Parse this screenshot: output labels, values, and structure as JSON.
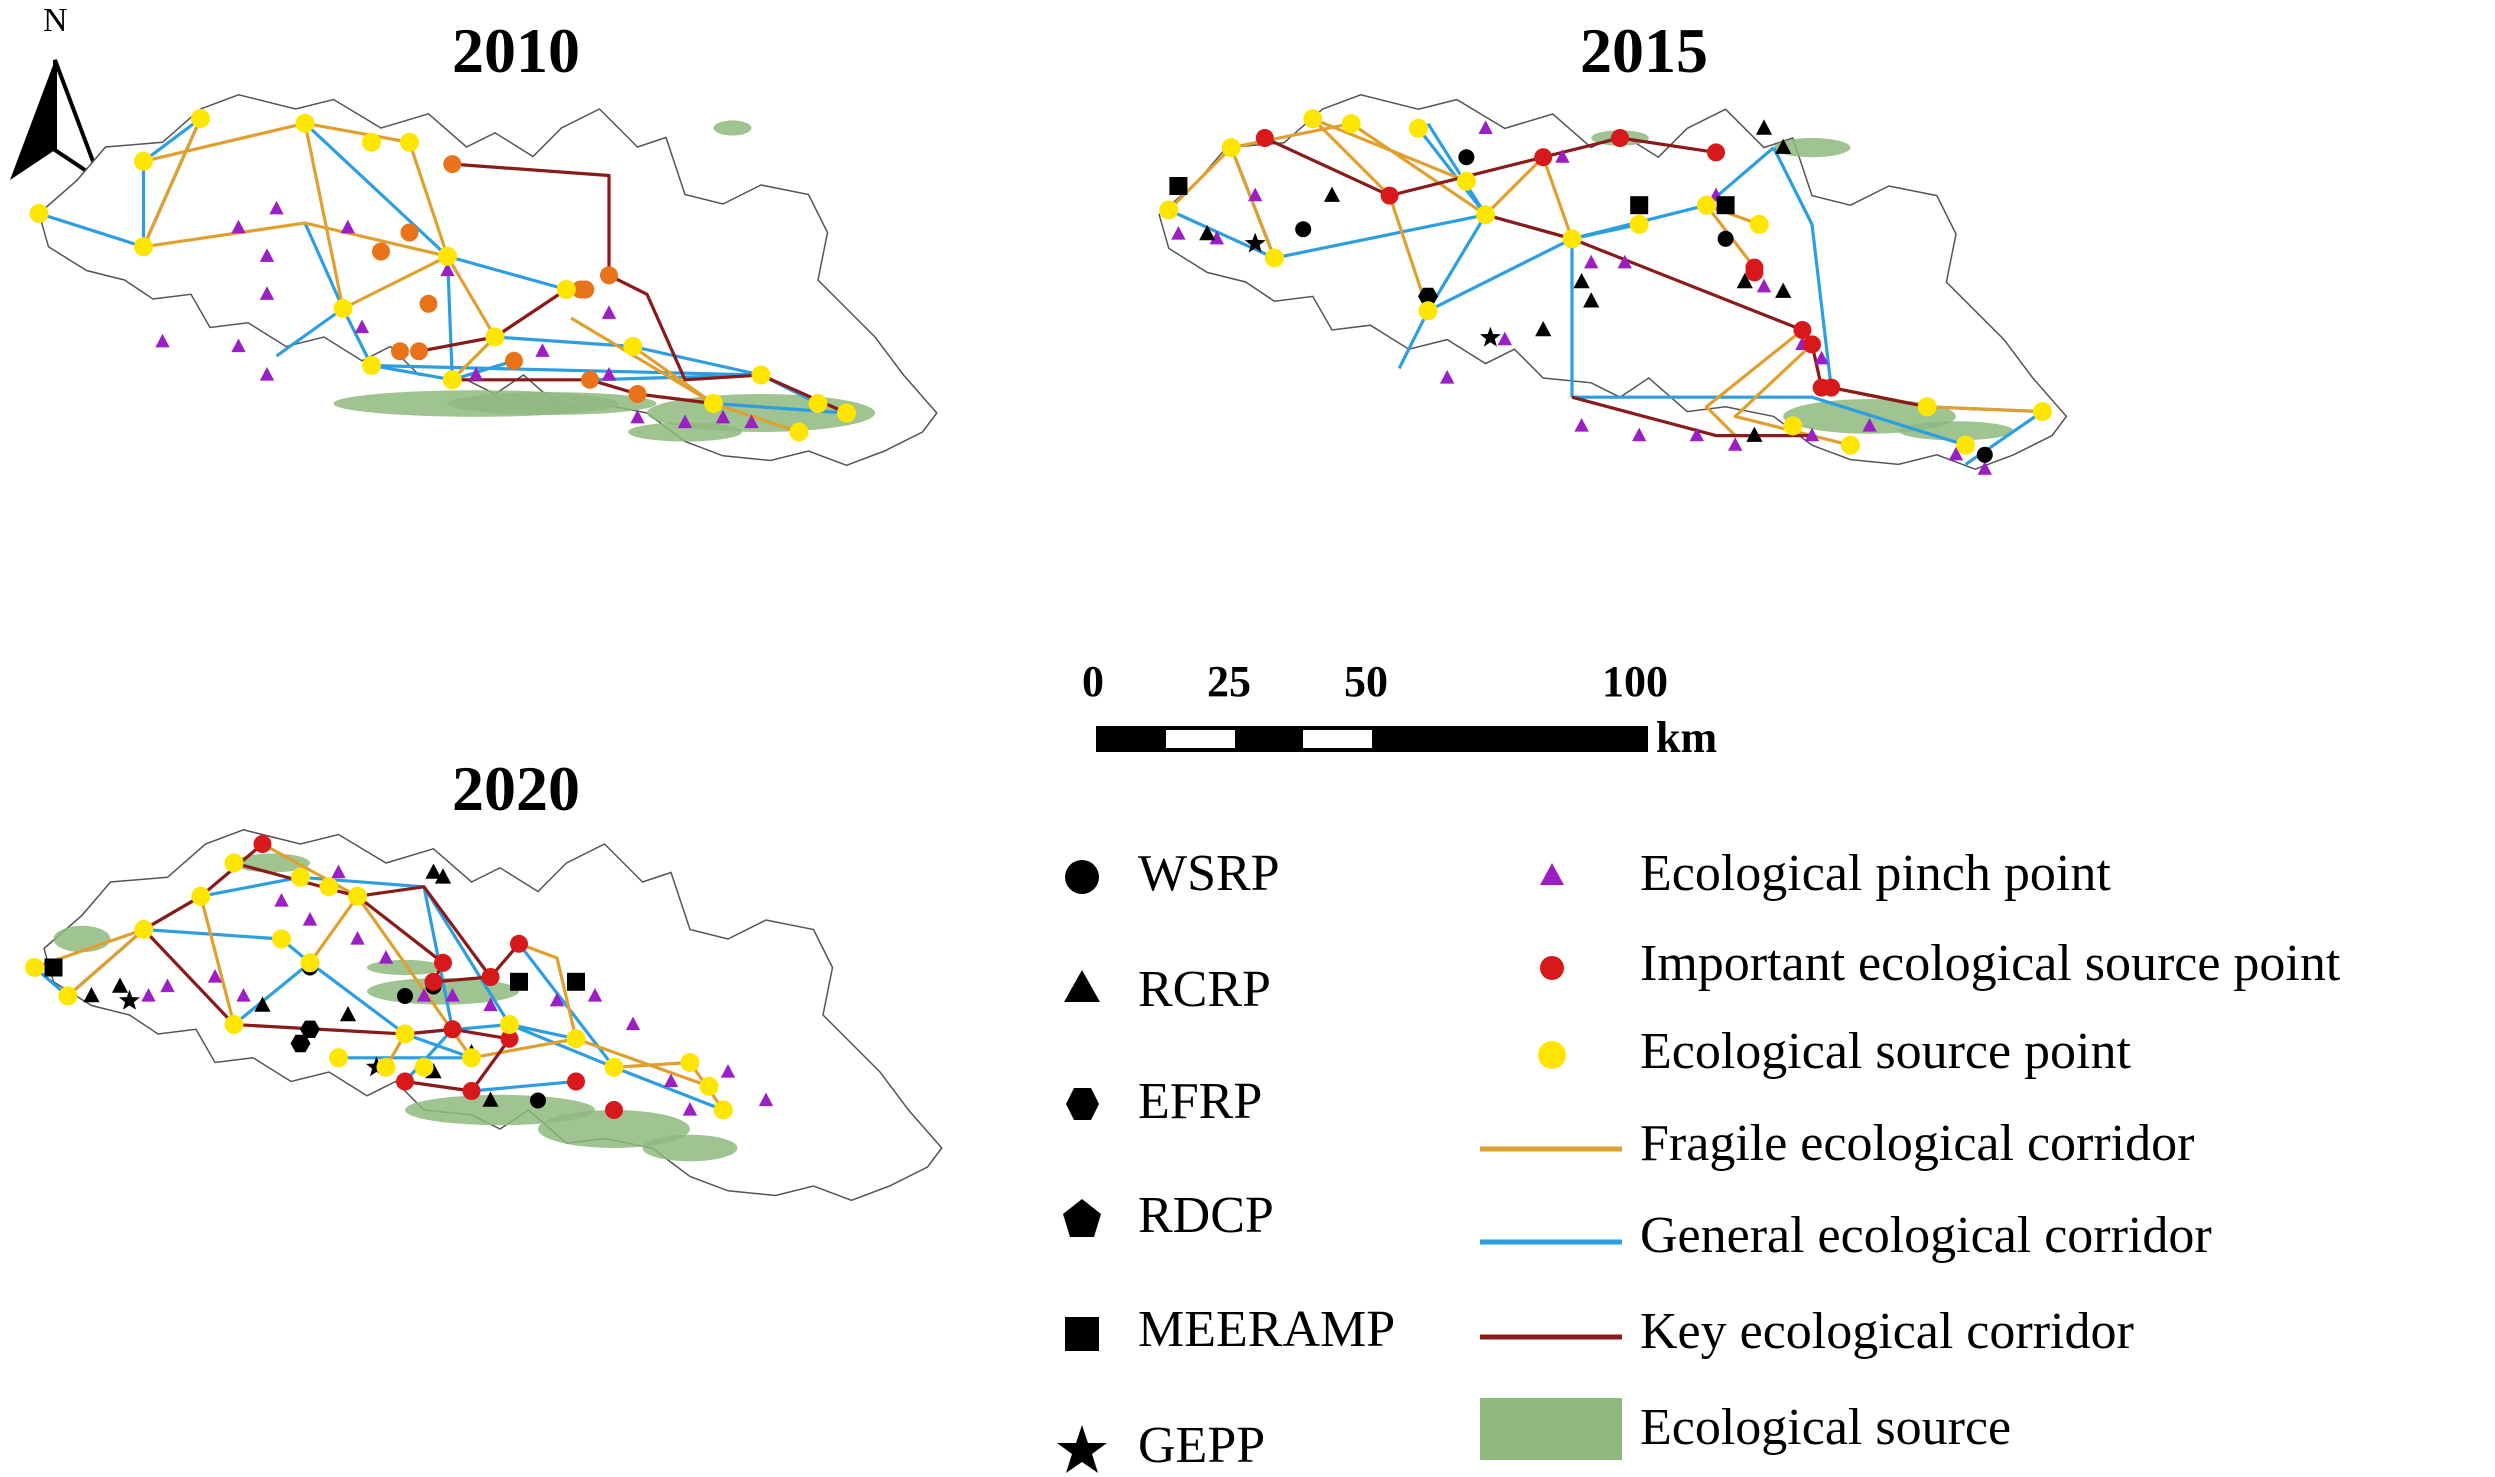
{
  "maps": [
    {
      "year_label": "2010"
    },
    {
      "year_label": "2015"
    },
    {
      "year_label": "2020"
    }
  ],
  "north_arrow": {
    "label": "N",
    "icon": "north-arrow-icon"
  },
  "scale_bar": {
    "tick_labels": [
      "0",
      "25",
      "50",
      "100"
    ],
    "unit": "km"
  },
  "legend": {
    "restoration_points": [
      {
        "symbol": "circle",
        "icon": "circle-icon",
        "label": "WSRP"
      },
      {
        "symbol": "triangle",
        "icon": "triangle-icon",
        "label": "RCRP"
      },
      {
        "symbol": "hexagon",
        "icon": "hexagon-icon",
        "label": "EFRP"
      },
      {
        "symbol": "pentagon",
        "icon": "pentagon-icon",
        "label": "RDCP"
      },
      {
        "symbol": "square",
        "icon": "square-icon",
        "label": "MEERAMP"
      },
      {
        "symbol": "star",
        "icon": "star-icon",
        "label": "GEPP"
      }
    ],
    "network_elements": [
      {
        "symbol": "triangle",
        "color": "#9b1fc4",
        "icon": "purple-triangle-icon",
        "label": "Ecological pinch point"
      },
      {
        "symbol": "circle",
        "color": "#d7191c",
        "icon": "red-circle-icon",
        "label": "Important ecological source point"
      },
      {
        "symbol": "circle",
        "color": "#ffe600",
        "icon": "yellow-circle-icon",
        "label": "Ecological source point"
      },
      {
        "symbol": "line",
        "color": "#e0a030",
        "icon": "orange-line-icon",
        "label": "Fragile ecological corridor"
      },
      {
        "symbol": "line",
        "color": "#2d9ee0",
        "icon": "blue-line-icon",
        "label": "General ecological corridor"
      },
      {
        "symbol": "line",
        "color": "#8b1a1a",
        "icon": "darkred-line-icon",
        "label": "Key ecological corridor"
      },
      {
        "symbol": "patch",
        "color": "#8fb87f",
        "icon": "green-patch-icon",
        "label": "Ecological source"
      }
    ]
  },
  "colors": {
    "boundary": "#555555",
    "fragile": "#e0a030",
    "general": "#2d9ee0",
    "key": "#8b1a1a",
    "source_patch": "#8fb87f",
    "pinch": "#9b1fc4",
    "important_source": "#d7191c",
    "source_point": "#ffe600",
    "orange_source_2010": "#e8731a"
  }
}
